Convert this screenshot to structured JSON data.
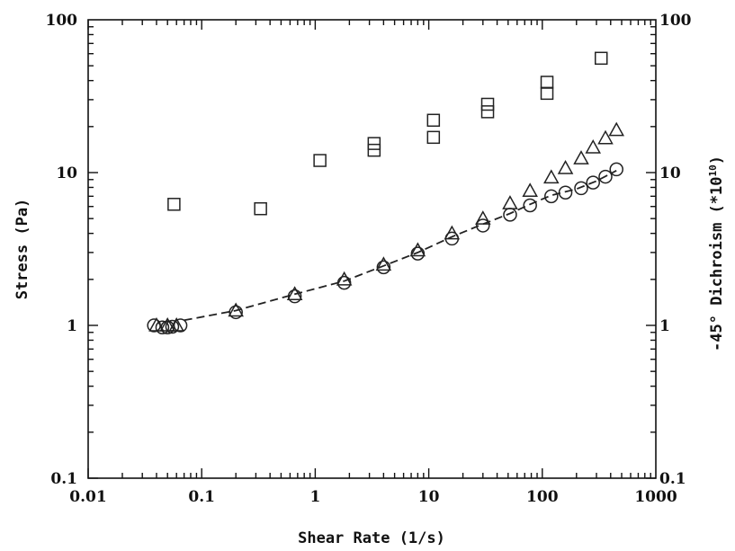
{
  "chart_data": {
    "type": "scatter",
    "x_scale": "log",
    "y_scale": "log",
    "xlim": [
      0.01,
      1000
    ],
    "ylim": [
      0.1,
      100
    ],
    "y2lim": [
      0.1,
      100
    ],
    "xlabel": "Shear Rate (1/s)",
    "ylabel": "Stress (Pa)",
    "y2label": "-45° Dichroism (*10",
    "y2label_exponent": "10",
    "y2label_close": ")",
    "x_ticks": [
      0.01,
      0.1,
      1,
      10,
      100,
      1000
    ],
    "x_tick_labels": [
      "0.01",
      "0.1",
      "1",
      "10",
      "100",
      "1000"
    ],
    "y_ticks": [
      0.1,
      1,
      10,
      100
    ],
    "y_tick_labels": [
      "0.1",
      "1",
      "10",
      "100"
    ],
    "y2_tick_labels": [
      "0.1",
      "1",
      "10",
      "100"
    ],
    "grid": false,
    "series": [
      {
        "marker": "square",
        "points": [
          [
            0.057,
            6.2
          ],
          [
            0.33,
            5.8
          ],
          [
            1.1,
            12
          ],
          [
            3.3,
            14
          ],
          [
            3.3,
            15.5
          ],
          [
            11,
            17
          ],
          [
            11,
            22
          ],
          [
            33,
            25
          ],
          [
            33,
            28
          ],
          [
            110,
            33
          ],
          [
            110,
            39
          ],
          [
            330,
            56
          ]
        ]
      },
      {
        "marker": "triangle",
        "points": [
          [
            0.04,
            1.0
          ],
          [
            0.05,
            1.0
          ],
          [
            0.06,
            1.0
          ],
          [
            0.2,
            1.25
          ],
          [
            0.66,
            1.6
          ],
          [
            1.8,
            2.0
          ],
          [
            4,
            2.5
          ],
          [
            8,
            3.1
          ],
          [
            16,
            4.0
          ],
          [
            30,
            5.0
          ],
          [
            52,
            6.3
          ],
          [
            78,
            7.6
          ],
          [
            120,
            9.3
          ],
          [
            160,
            10.7
          ],
          [
            220,
            12.4
          ],
          [
            280,
            14.6
          ],
          [
            360,
            16.8
          ],
          [
            450,
            19
          ]
        ]
      },
      {
        "marker": "circle",
        "points": [
          [
            0.038,
            1.0
          ],
          [
            0.045,
            0.97
          ],
          [
            0.05,
            0.97
          ],
          [
            0.055,
            0.98
          ],
          [
            0.065,
            1.0
          ],
          [
            0.2,
            1.22
          ],
          [
            0.66,
            1.55
          ],
          [
            1.8,
            1.9
          ],
          [
            4,
            2.4
          ],
          [
            8,
            2.95
          ],
          [
            16,
            3.7
          ],
          [
            30,
            4.5
          ],
          [
            52,
            5.3
          ],
          [
            78,
            6.1
          ],
          [
            120,
            7.0
          ],
          [
            160,
            7.4
          ],
          [
            220,
            7.9
          ],
          [
            280,
            8.6
          ],
          [
            360,
            9.4
          ],
          [
            450,
            10.5
          ]
        ]
      }
    ],
    "fit_line": {
      "style": "dashed",
      "points": [
        [
          0.07,
          1.08
        ],
        [
          0.2,
          1.25
        ],
        [
          0.66,
          1.6
        ],
        [
          1.8,
          1.95
        ],
        [
          4,
          2.45
        ],
        [
          8,
          3.0
        ],
        [
          16,
          3.8
        ],
        [
          30,
          4.6
        ],
        [
          52,
          5.4
        ],
        [
          78,
          6.2
        ],
        [
          120,
          7.1
        ],
        [
          200,
          7.8
        ],
        [
          300,
          8.8
        ],
        [
          450,
          10.3
        ]
      ]
    }
  }
}
